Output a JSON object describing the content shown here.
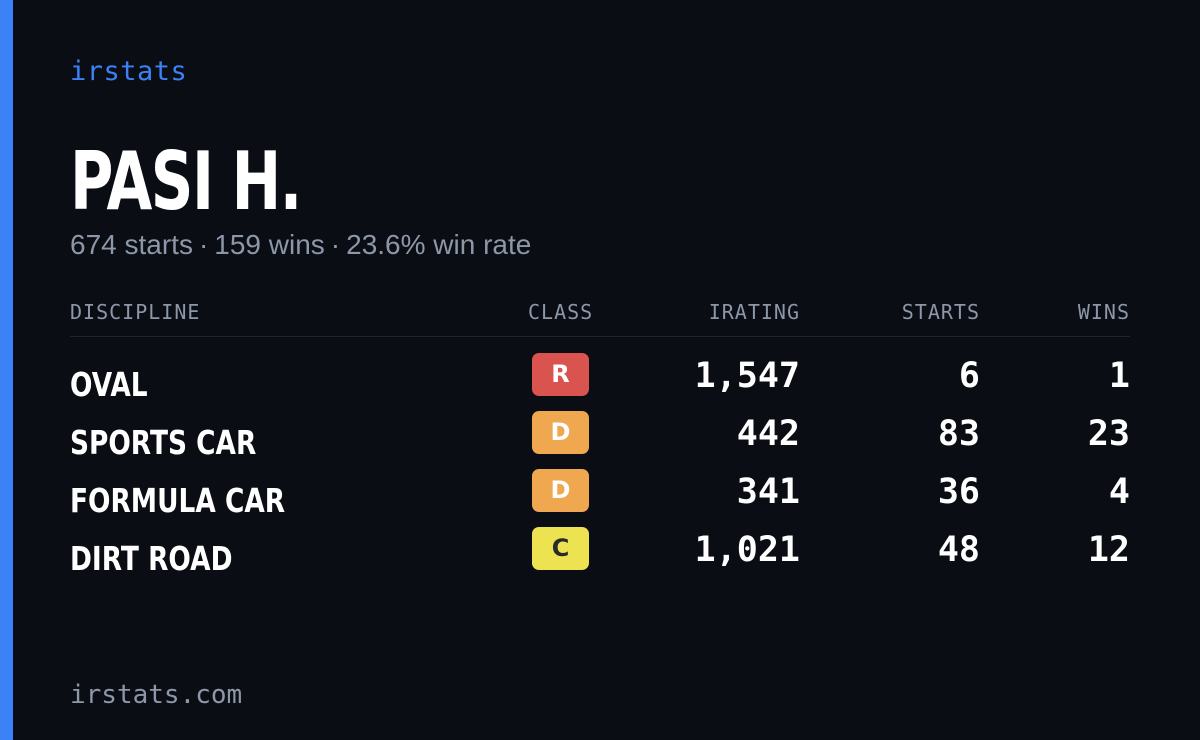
{
  "brand": "irstats",
  "player": {
    "name": "PASI H.",
    "starts_text": "674 starts",
    "wins_text": "159 wins",
    "win_rate_text": "23.6% win rate",
    "separator": "·"
  },
  "table": {
    "headers": {
      "discipline": "DISCIPLINE",
      "class": "CLASS",
      "irating": "IRATING",
      "starts": "STARTS",
      "wins": "WINS"
    },
    "rows": [
      {
        "discipline": "OVAL",
        "class": "R",
        "class_color": "#d9534f",
        "class_text_color": "#ffffff",
        "irating": "1,547",
        "starts": "6",
        "wins": "1"
      },
      {
        "discipline": "SPORTS CAR",
        "class": "D",
        "class_color": "#f0a850",
        "class_text_color": "#ffffff",
        "irating": "442",
        "starts": "83",
        "wins": "23"
      },
      {
        "discipline": "FORMULA CAR",
        "class": "D",
        "class_color": "#f0a850",
        "class_text_color": "#ffffff",
        "irating": "341",
        "starts": "36",
        "wins": "4"
      },
      {
        "discipline": "DIRT ROAD",
        "class": "C",
        "class_color": "#ede24f",
        "class_text_color": "#2a2a2a",
        "irating": "1,021",
        "starts": "48",
        "wins": "12"
      }
    ]
  },
  "footer": "irstats.com",
  "colors": {
    "accent": "#3b82f6",
    "background": "#0a0d14",
    "muted_text": "#8d97a8"
  }
}
